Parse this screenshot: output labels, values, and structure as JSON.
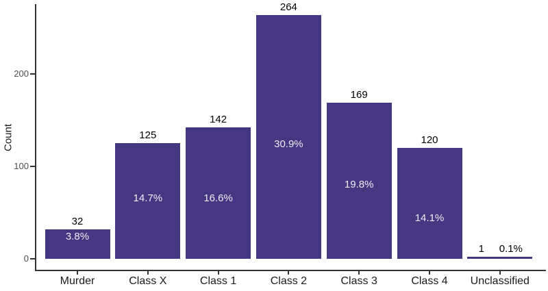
{
  "chart_data": {
    "type": "bar",
    "title": "",
    "xlabel": "",
    "ylabel": "Count",
    "categories": [
      "Murder",
      "Class X",
      "Class 1",
      "Class 2",
      "Class 3",
      "Class 4",
      "Unclassified"
    ],
    "values": [
      32,
      125,
      142,
      264,
      169,
      120,
      1
    ],
    "count_labels": [
      "32",
      "125",
      "142",
      "264",
      "169",
      "120",
      "1"
    ],
    "pct_labels": [
      "3.8%",
      "14.7%",
      "16.6%",
      "30.9%",
      "19.8%",
      "14.1%",
      "0.1%"
    ],
    "pct_label_inside": [
      true,
      true,
      true,
      true,
      true,
      true,
      false
    ],
    "pct_label_at_count": [
      24,
      65,
      65,
      124,
      80,
      44,
      null
    ],
    "yticks": [
      0,
      100,
      200
    ],
    "ylim": [
      0,
      275
    ],
    "grid": false,
    "legend": "none",
    "bar_color": "#453781",
    "axis_line_color": "#333333",
    "tick_label_color": "#4d4d4d",
    "category_label_color": "#1a1a1a",
    "count_label_color": "#000000",
    "pct_label_color": "#efecf6"
  }
}
